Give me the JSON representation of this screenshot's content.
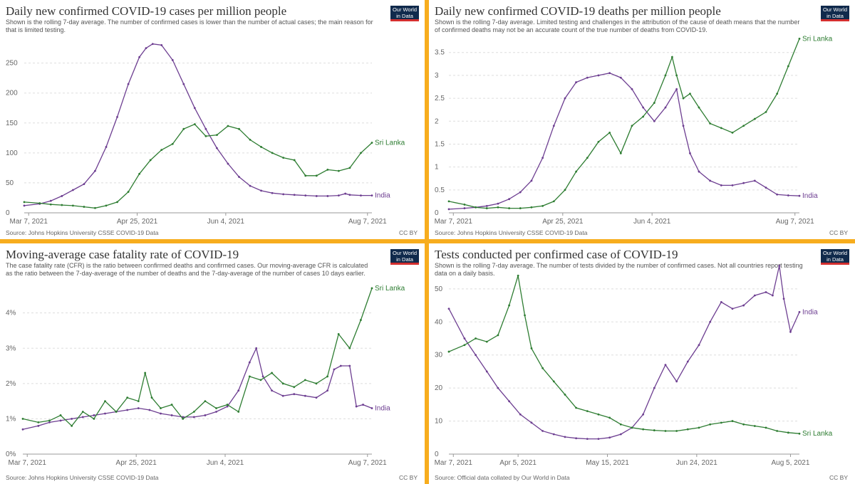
{
  "panels": [
    {
      "title": "Daily new confirmed COVID-19 cases per million people",
      "subtitle": "Shown is the rolling 7-day average. The number of confirmed cases is lower than the number of actual cases; the main reason for that is limited testing.",
      "source": "Source: Johns Hopkins University CSSE COVID-19 Data",
      "license": "CC BY",
      "logo_line1": "Our World",
      "logo_line2": "in Data"
    },
    {
      "title": "Daily new confirmed COVID-19 deaths per million people",
      "subtitle": "Shown is the rolling 7-day average. Limited testing and challenges in the attribution of the cause of death means that the number of confirmed deaths may not be an accurate count of the true number of deaths from COVID-19.",
      "source": "Source: Johns Hopkins University CSSE COVID-19 Data",
      "license": "CC BY",
      "logo_line1": "Our World",
      "logo_line2": "in Data"
    },
    {
      "title": "Moving-average case fatality rate of COVID-19",
      "subtitle": "The case fatality rate (CFR) is the ratio between confirmed deaths and confirmed cases. Our moving-average CFR is calculated as the ratio between the 7-day-average of the number of deaths and the 7-day-average of the number of cases 10 days earlier.",
      "source": "Source: Johns Hopkins University CSSE COVID-19 Data",
      "license": "CC BY",
      "logo_line1": "Our World",
      "logo_line2": "in Data"
    },
    {
      "title": "Tests conducted per confirmed case of COVID-19",
      "subtitle": "Shown is the rolling 7-day average. The number of tests divided by the number of confirmed cases. Not all countries report testing data on a daily basis.",
      "source": "Source: Official data collated by Our World in Data",
      "license": "CC BY",
      "logo_line1": "Our World",
      "logo_line2": "in Data"
    }
  ],
  "chart_data": [
    {
      "type": "line",
      "title": "Daily new confirmed COVID-19 cases per million people",
      "x_ticks": [
        "Mar 7, 2021",
        "Apr 25, 2021",
        "Jun 4, 2021",
        "Aug 7, 2021"
      ],
      "x_tick_days": [
        0,
        49,
        89,
        153
      ],
      "y_ticks": [
        "0",
        "50",
        "100",
        "150",
        "200",
        "250"
      ],
      "y_tick_values": [
        0,
        50,
        100,
        150,
        200,
        250
      ],
      "ylim": [
        0,
        290
      ],
      "xlim": [
        -2,
        155
      ],
      "grid": true,
      "series": [
        {
          "name": "India",
          "color": "#6d3e91",
          "x": [
            -2,
            5,
            10,
            15,
            20,
            25,
            30,
            35,
            40,
            45,
            50,
            53,
            56,
            60,
            65,
            70,
            75,
            80,
            85,
            90,
            95,
            100,
            105,
            110,
            115,
            120,
            125,
            130,
            135,
            140,
            143,
            145,
            150,
            155
          ],
          "y": [
            12,
            15,
            20,
            28,
            38,
            48,
            70,
            110,
            160,
            215,
            260,
            275,
            282,
            280,
            255,
            215,
            175,
            140,
            108,
            82,
            60,
            45,
            37,
            33,
            31,
            30,
            29,
            28,
            28,
            29,
            32,
            30,
            29,
            29
          ]
        },
        {
          "name": "Sri Lanka",
          "color": "#2e7d32",
          "x": [
            -2,
            5,
            10,
            15,
            20,
            25,
            30,
            35,
            40,
            45,
            50,
            55,
            60,
            65,
            70,
            75,
            80,
            85,
            90,
            95,
            100,
            105,
            110,
            115,
            120,
            125,
            130,
            135,
            140,
            145,
            150,
            155
          ],
          "y": [
            18,
            16,
            14,
            13,
            12,
            10,
            8,
            12,
            18,
            35,
            65,
            88,
            105,
            115,
            140,
            148,
            128,
            130,
            145,
            140,
            122,
            110,
            100,
            92,
            88,
            62,
            62,
            72,
            70,
            75,
            100,
            117
          ]
        }
      ],
      "legend": "line-end labels"
    },
    {
      "type": "line",
      "title": "Daily new confirmed COVID-19 deaths per million people",
      "x_ticks": [
        "Mar 7, 2021",
        "Apr 25, 2021",
        "Jun 4, 2021",
        "Aug 7, 2021"
      ],
      "x_tick_days": [
        0,
        49,
        89,
        153
      ],
      "y_ticks": [
        "0",
        "0.5",
        "1",
        "1.5",
        "2",
        "2.5",
        "3",
        "3.5"
      ],
      "y_tick_values": [
        0,
        0.5,
        1,
        1.5,
        2,
        2.5,
        3,
        3.5
      ],
      "ylim": [
        0,
        3.9
      ],
      "xlim": [
        -2,
        155
      ],
      "grid": true,
      "series": [
        {
          "name": "India",
          "color": "#6d3e91",
          "x": [
            -2,
            5,
            10,
            15,
            20,
            25,
            30,
            35,
            40,
            45,
            50,
            55,
            60,
            65,
            70,
            75,
            80,
            85,
            90,
            95,
            100,
            103,
            106,
            110,
            115,
            120,
            125,
            130,
            135,
            140,
            145,
            150,
            155
          ],
          "y": [
            0.08,
            0.1,
            0.12,
            0.15,
            0.2,
            0.3,
            0.45,
            0.7,
            1.2,
            1.9,
            2.5,
            2.85,
            2.95,
            3.0,
            3.05,
            2.95,
            2.7,
            2.3,
            2.0,
            2.3,
            2.7,
            1.9,
            1.3,
            0.9,
            0.7,
            0.6,
            0.6,
            0.65,
            0.7,
            0.55,
            0.4,
            0.38,
            0.37
          ]
        },
        {
          "name": "Sri Lanka",
          "color": "#2e7d32",
          "x": [
            -2,
            5,
            10,
            15,
            20,
            25,
            30,
            35,
            40,
            45,
            50,
            55,
            60,
            65,
            70,
            75,
            80,
            85,
            90,
            95,
            98,
            100,
            103,
            106,
            110,
            115,
            120,
            125,
            130,
            135,
            140,
            145,
            150,
            155
          ],
          "y": [
            0.25,
            0.18,
            0.12,
            0.1,
            0.12,
            0.1,
            0.1,
            0.12,
            0.15,
            0.25,
            0.5,
            0.9,
            1.2,
            1.55,
            1.75,
            1.3,
            1.9,
            2.1,
            2.4,
            3.0,
            3.4,
            3.0,
            2.5,
            2.6,
            2.3,
            1.95,
            1.85,
            1.75,
            1.9,
            2.05,
            2.2,
            2.6,
            3.2,
            3.8
          ]
        }
      ],
      "legend": "line-end labels"
    },
    {
      "type": "line",
      "title": "Moving-average case fatality rate of COVID-19",
      "x_ticks": [
        "Mar 7, 2021",
        "Apr 25, 2021",
        "Jun 4, 2021",
        "Aug 7, 2021"
      ],
      "x_tick_days": [
        0,
        49,
        89,
        153
      ],
      "y_ticks": [
        "0%",
        "1%",
        "2%",
        "3%",
        "4%"
      ],
      "y_tick_values": [
        0,
        1,
        2,
        3,
        4
      ],
      "ylim": [
        0,
        4.8
      ],
      "xlim": [
        -2,
        155
      ],
      "grid": true,
      "series": [
        {
          "name": "India",
          "color": "#6d3e91",
          "x": [
            -2,
            5,
            10,
            15,
            20,
            25,
            30,
            35,
            40,
            45,
            50,
            55,
            60,
            65,
            70,
            75,
            80,
            85,
            90,
            95,
            100,
            103,
            106,
            110,
            115,
            120,
            125,
            130,
            135,
            138,
            141,
            145,
            148,
            151,
            155
          ],
          "y": [
            0.7,
            0.8,
            0.9,
            0.95,
            1.0,
            1.05,
            1.1,
            1.15,
            1.2,
            1.25,
            1.3,
            1.25,
            1.15,
            1.1,
            1.05,
            1.05,
            1.1,
            1.2,
            1.35,
            1.8,
            2.6,
            3.0,
            2.2,
            1.8,
            1.65,
            1.7,
            1.65,
            1.6,
            1.8,
            2.4,
            2.5,
            2.5,
            1.35,
            1.4,
            1.3
          ]
        },
        {
          "name": "Sri Lanka",
          "color": "#2e7d32",
          "x": [
            -2,
            5,
            10,
            15,
            20,
            25,
            30,
            35,
            40,
            45,
            50,
            53,
            56,
            60,
            65,
            70,
            75,
            80,
            85,
            90,
            95,
            100,
            105,
            110,
            115,
            120,
            125,
            130,
            135,
            140,
            145,
            150,
            155
          ],
          "y": [
            1.0,
            0.9,
            0.95,
            1.1,
            0.8,
            1.2,
            1.0,
            1.5,
            1.2,
            1.6,
            1.5,
            2.3,
            1.6,
            1.3,
            1.4,
            1.0,
            1.2,
            1.5,
            1.3,
            1.4,
            1.2,
            2.2,
            2.1,
            2.3,
            2.0,
            1.9,
            2.1,
            2.0,
            2.2,
            3.4,
            3.0,
            3.8,
            4.7
          ]
        }
      ],
      "legend": "line-end labels"
    },
    {
      "type": "line",
      "title": "Tests conducted per confirmed case of COVID-19",
      "x_ticks": [
        "Mar 7, 2021",
        "Apr 5, 2021",
        "May 15, 2021",
        "Jun 24, 2021",
        "Aug 5, 2021"
      ],
      "x_tick_days": [
        0,
        29,
        69,
        109,
        151
      ],
      "y_ticks": [
        "0",
        "10",
        "20",
        "30",
        "40",
        "50"
      ],
      "y_tick_values": [
        0,
        10,
        20,
        30,
        40,
        50
      ],
      "ylim": [
        0,
        56
      ],
      "xlim": [
        -2,
        155
      ],
      "grid": true,
      "series": [
        {
          "name": "India",
          "color": "#6d3e91",
          "x": [
            -2,
            5,
            10,
            15,
            20,
            25,
            30,
            35,
            40,
            45,
            50,
            55,
            60,
            65,
            70,
            75,
            80,
            85,
            90,
            95,
            100,
            105,
            110,
            115,
            120,
            125,
            130,
            135,
            140,
            143,
            146,
            148,
            151,
            155
          ],
          "y": [
            44,
            35,
            30,
            25,
            20,
            16,
            12,
            9.5,
            7,
            6,
            5.2,
            4.8,
            4.6,
            4.6,
            5,
            6,
            8,
            12,
            20,
            27,
            22,
            28,
            33,
            40,
            46,
            44,
            45,
            48,
            49,
            48,
            57,
            47,
            37,
            43
          ]
        },
        {
          "name": "Sri Lanka",
          "color": "#2e7d32",
          "x": [
            -2,
            5,
            10,
            15,
            20,
            25,
            29,
            32,
            35,
            40,
            45,
            50,
            55,
            60,
            65,
            70,
            75,
            80,
            85,
            90,
            95,
            100,
            105,
            110,
            115,
            120,
            125,
            130,
            135,
            140,
            145,
            150,
            155
          ],
          "y": [
            31,
            33,
            35,
            34,
            36,
            45,
            54,
            42,
            32,
            26,
            22,
            18,
            14,
            13,
            12,
            11,
            9,
            8,
            7.5,
            7.2,
            7,
            7,
            7.5,
            8,
            9,
            9.5,
            10,
            9,
            8.5,
            8,
            7,
            6.5,
            6.2
          ]
        }
      ],
      "legend": "line-end labels"
    }
  ]
}
